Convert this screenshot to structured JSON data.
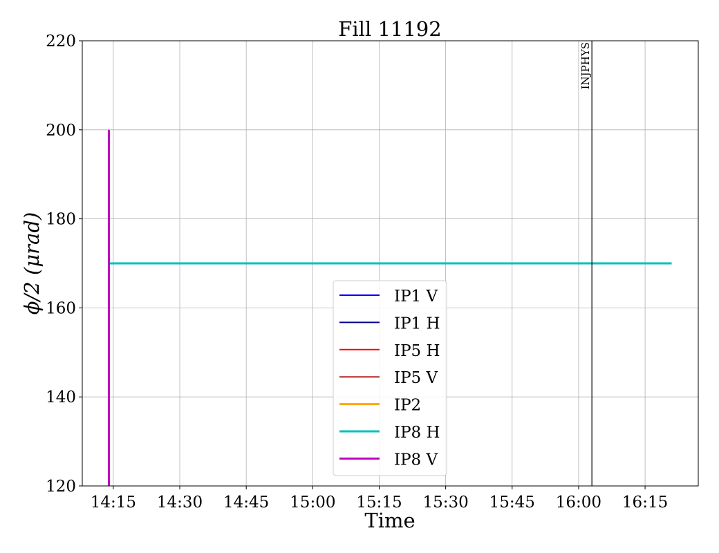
{
  "chart_data": {
    "type": "line",
    "title": "Fill 11192",
    "xlabel": "Time",
    "ylabel": "ϕ/2 (μrad)",
    "xlim": [
      "14:08",
      "16:27"
    ],
    "ylim": [
      120,
      220
    ],
    "xticks": [
      "14:15",
      "14:30",
      "14:45",
      "15:00",
      "15:15",
      "15:30",
      "15:45",
      "16:00",
      "16:15"
    ],
    "yticks": [
      120,
      140,
      160,
      180,
      200,
      220
    ],
    "grid": true,
    "legend_position": "lower-center",
    "series": [
      {
        "name": "IP1 V",
        "color": "#0000ff",
        "points": []
      },
      {
        "name": "IP1 H",
        "color": "#00008b",
        "points": []
      },
      {
        "name": "IP5 H",
        "color": "#ff0000",
        "points": []
      },
      {
        "name": "IP5 V",
        "color": "#b22222",
        "points": []
      },
      {
        "name": "IP2",
        "color": "#ffa500",
        "points": []
      },
      {
        "name": "IP8 H",
        "color": "#00bfbf",
        "points": [
          [
            "14:14",
            170
          ],
          [
            "16:21",
            170
          ]
        ]
      },
      {
        "name": "IP8 V",
        "color": "#bf00bf",
        "points": [
          [
            "14:14",
            200
          ],
          [
            "14:14",
            100
          ]
        ]
      }
    ],
    "annotations": [
      {
        "type": "vline",
        "x": "16:03",
        "text": "INJPHYS",
        "color": "#000000"
      }
    ]
  }
}
